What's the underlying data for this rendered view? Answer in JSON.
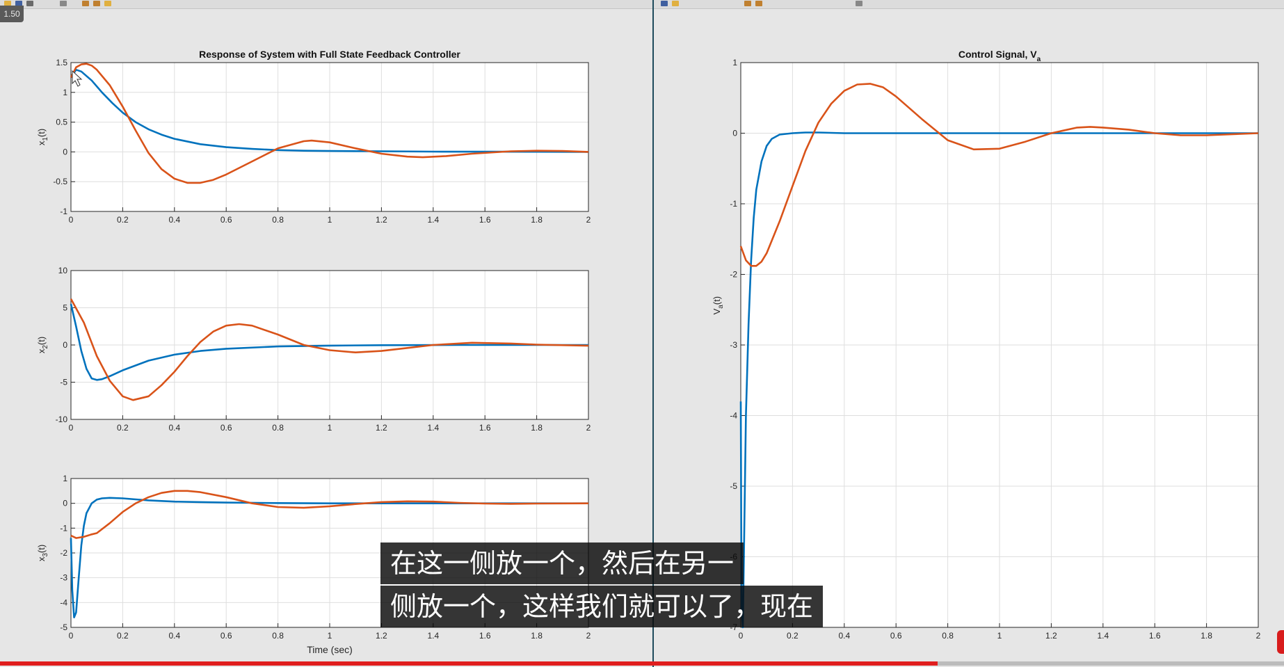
{
  "player": {
    "speed_label": "1.50",
    "progress": 0.73
  },
  "subtitles": [
    "在这一侧放一个，然后在另一",
    "侧放一个，这样我们就可以了，现在"
  ],
  "colors": {
    "blue": "#0072bd",
    "orange": "#d95319",
    "grid": "#dedede"
  },
  "chart_data": [
    {
      "type": "line",
      "title": "Response of System with Full State Feedback Controller",
      "ylabel": "x1(t)",
      "xlabel": "",
      "xlim": [
        0,
        2
      ],
      "ylim": [
        -1,
        1.5
      ],
      "xticks": [
        "0",
        "0.2",
        "0.4",
        "0.6",
        "0.8",
        "1",
        "1.2",
        "1.4",
        "1.6",
        "1.8",
        "2"
      ],
      "yticks": [
        "-1",
        "-0.5",
        "0",
        "0.5",
        "1",
        "1.5"
      ],
      "grid": true,
      "series": [
        {
          "color": "#0072bd",
          "x": [
            0,
            0.02,
            0.04,
            0.08,
            0.12,
            0.16,
            0.2,
            0.25,
            0.3,
            0.35,
            0.4,
            0.5,
            0.6,
            0.7,
            0.8,
            0.9,
            1.0,
            1.2,
            1.4,
            1.6,
            1.8,
            2.0
          ],
          "y": [
            1.25,
            1.38,
            1.35,
            1.2,
            1.0,
            0.82,
            0.66,
            0.5,
            0.38,
            0.29,
            0.22,
            0.13,
            0.08,
            0.05,
            0.03,
            0.02,
            0.015,
            0.01,
            0.005,
            0.003,
            0.002,
            0.0
          ]
        },
        {
          "color": "#d95319",
          "x": [
            0,
            0.02,
            0.04,
            0.06,
            0.08,
            0.1,
            0.15,
            0.2,
            0.25,
            0.3,
            0.35,
            0.4,
            0.45,
            0.5,
            0.55,
            0.6,
            0.7,
            0.8,
            0.9,
            0.93,
            1.0,
            1.1,
            1.2,
            1.3,
            1.36,
            1.45,
            1.55,
            1.7,
            1.8,
            1.9,
            2.0
          ],
          "y": [
            1.25,
            1.42,
            1.47,
            1.48,
            1.45,
            1.38,
            1.12,
            0.76,
            0.36,
            -0.02,
            -0.29,
            -0.45,
            -0.52,
            -0.52,
            -0.47,
            -0.38,
            -0.16,
            0.06,
            0.18,
            0.19,
            0.16,
            0.06,
            -0.03,
            -0.08,
            -0.09,
            -0.07,
            -0.03,
            0.01,
            0.02,
            0.015,
            0.0
          ]
        }
      ]
    },
    {
      "type": "line",
      "title": "",
      "ylabel": "x2(t)",
      "xlabel": "",
      "xlim": [
        0,
        2
      ],
      "ylim": [
        -10,
        10
      ],
      "xticks": [
        "0",
        "0.2",
        "0.4",
        "0.6",
        "0.8",
        "1",
        "1.2",
        "1.4",
        "1.6",
        "1.8",
        "2"
      ],
      "yticks": [
        "-10",
        "-5",
        "0",
        "5",
        "10"
      ],
      "grid": true,
      "series": [
        {
          "color": "#0072bd",
          "x": [
            0,
            0.02,
            0.04,
            0.06,
            0.08,
            0.1,
            0.12,
            0.15,
            0.2,
            0.3,
            0.4,
            0.5,
            0.6,
            0.8,
            1.0,
            1.2,
            1.5,
            2.0
          ],
          "y": [
            5.5,
            2.5,
            -0.8,
            -3.2,
            -4.5,
            -4.7,
            -4.6,
            -4.2,
            -3.4,
            -2.1,
            -1.3,
            -0.8,
            -0.5,
            -0.2,
            -0.08,
            -0.03,
            0.0,
            0.0
          ]
        },
        {
          "color": "#d95319",
          "x": [
            0,
            0.05,
            0.1,
            0.15,
            0.2,
            0.24,
            0.3,
            0.35,
            0.4,
            0.45,
            0.5,
            0.55,
            0.6,
            0.65,
            0.7,
            0.8,
            0.9,
            1.0,
            1.1,
            1.2,
            1.3,
            1.4,
            1.55,
            1.7,
            1.8,
            2.0
          ],
          "y": [
            6.2,
            3.0,
            -1.5,
            -4.8,
            -6.9,
            -7.4,
            -6.9,
            -5.4,
            -3.6,
            -1.5,
            0.4,
            1.8,
            2.6,
            2.8,
            2.6,
            1.4,
            0.0,
            -0.7,
            -1.0,
            -0.8,
            -0.4,
            0.0,
            0.3,
            0.2,
            0.05,
            -0.1
          ]
        }
      ]
    },
    {
      "type": "line",
      "title": "",
      "ylabel": "x3(t)",
      "xlabel": "Time (sec)",
      "xlim": [
        0,
        2
      ],
      "ylim": [
        -5,
        1
      ],
      "xticks": [
        "0",
        "0.2",
        "0.4",
        "0.6",
        "0.8",
        "1",
        "1.2",
        "1.4",
        "1.6",
        "1.8",
        "2"
      ],
      "yticks": [
        "-5",
        "-4",
        "-3",
        "-2",
        "-1",
        "0",
        "1"
      ],
      "grid": true,
      "series": [
        {
          "color": "#0072bd",
          "x": [
            0,
            0.005,
            0.012,
            0.02,
            0.03,
            0.04,
            0.05,
            0.06,
            0.08,
            0.1,
            0.12,
            0.15,
            0.2,
            0.25,
            0.3,
            0.4,
            0.5,
            0.6,
            0.8,
            1.0,
            1.2,
            1.4,
            1.6,
            1.8,
            2.0
          ],
          "y": [
            -1.4,
            -3.5,
            -4.6,
            -4.4,
            -3.0,
            -1.7,
            -0.9,
            -0.4,
            0.0,
            0.15,
            0.2,
            0.22,
            0.2,
            0.16,
            0.12,
            0.07,
            0.05,
            0.03,
            0.01,
            0.0,
            0.0,
            0.0,
            0.0,
            0.0,
            0.0
          ]
        },
        {
          "color": "#d95319",
          "x": [
            0,
            0.02,
            0.05,
            0.08,
            0.1,
            0.15,
            0.2,
            0.25,
            0.3,
            0.35,
            0.4,
            0.45,
            0.5,
            0.6,
            0.7,
            0.8,
            0.9,
            1.0,
            1.1,
            1.2,
            1.3,
            1.4,
            1.5,
            1.6,
            1.7,
            1.8,
            2.0
          ],
          "y": [
            -1.3,
            -1.4,
            -1.35,
            -1.25,
            -1.2,
            -0.8,
            -0.35,
            0.0,
            0.25,
            0.42,
            0.5,
            0.5,
            0.45,
            0.25,
            0.0,
            -0.15,
            -0.18,
            -0.12,
            -0.03,
            0.05,
            0.08,
            0.07,
            0.02,
            -0.01,
            -0.02,
            -0.01,
            0.0
          ]
        }
      ]
    },
    {
      "type": "line",
      "title": "Control Signal, Va",
      "ylabel": "Va(t)",
      "xlabel": "",
      "xlim": [
        0,
        2
      ],
      "ylim": [
        -7,
        1
      ],
      "xticks": [
        "0",
        "0.2",
        "0.4",
        "0.6",
        "0.8",
        "1",
        "1.2",
        "1.4",
        "1.6",
        "1.8",
        "2"
      ],
      "yticks": [
        "-7",
        "-6",
        "-5",
        "-4",
        "-3",
        "-2",
        "-1",
        "0",
        "1"
      ],
      "grid": true,
      "series": [
        {
          "color": "#0072bd",
          "x": [
            0,
            0.003,
            0.008,
            0.012,
            0.02,
            0.03,
            0.04,
            0.05,
            0.06,
            0.08,
            0.1,
            0.12,
            0.15,
            0.2,
            0.25,
            0.3,
            0.4,
            0.6,
            0.8,
            1.0,
            1.5,
            2.0
          ],
          "y": [
            -3.8,
            -6.7,
            -7.0,
            -6.0,
            -4.0,
            -2.7,
            -1.8,
            -1.2,
            -0.8,
            -0.4,
            -0.18,
            -0.08,
            -0.02,
            0.0,
            0.01,
            0.01,
            0.0,
            0.0,
            0.0,
            0.0,
            0.0,
            0.0
          ]
        },
        {
          "color": "#d95319",
          "x": [
            0,
            0.02,
            0.04,
            0.06,
            0.08,
            0.1,
            0.15,
            0.2,
            0.25,
            0.3,
            0.35,
            0.4,
            0.45,
            0.5,
            0.55,
            0.6,
            0.7,
            0.8,
            0.9,
            1.0,
            1.1,
            1.2,
            1.3,
            1.35,
            1.4,
            1.5,
            1.6,
            1.7,
            1.8,
            2.0
          ],
          "y": [
            -1.6,
            -1.8,
            -1.88,
            -1.88,
            -1.82,
            -1.7,
            -1.25,
            -0.75,
            -0.25,
            0.15,
            0.42,
            0.6,
            0.69,
            0.7,
            0.65,
            0.52,
            0.2,
            -0.1,
            -0.23,
            -0.22,
            -0.12,
            0.0,
            0.08,
            0.09,
            0.08,
            0.05,
            0.0,
            -0.03,
            -0.03,
            0.0
          ]
        }
      ]
    }
  ]
}
